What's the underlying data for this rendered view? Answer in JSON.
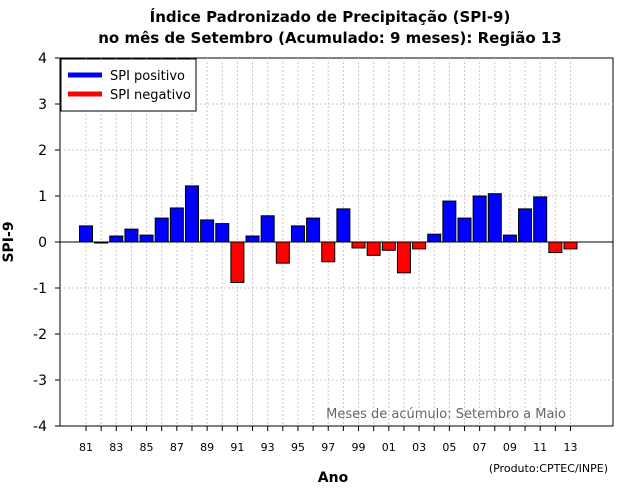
{
  "chart_data": {
    "type": "bar",
    "title_line1": "Índice Padronizado de Precipitação (SPI-9)",
    "title_line2": "no mês de Setembro (Acumulado: 9 meses): Região 13",
    "xlabel": "Ano",
    "ylabel": "SPI-9",
    "ylim": [
      -4,
      4
    ],
    "yticks": [
      "4",
      "3",
      "2",
      "1",
      "0",
      "-1",
      "-2",
      "-3",
      "-4"
    ],
    "ytick_values": [
      4,
      3,
      2,
      1,
      0,
      -1,
      -2,
      -3,
      -4
    ],
    "grid": true,
    "legend_position": "top-left",
    "legend": [
      {
        "label": "SPI positivo",
        "color": "#0000ff"
      },
      {
        "label": "SPI negativo",
        "color": "#ff0000"
      }
    ],
    "positive_color": "#0000ff",
    "negative_color": "#ff0000",
    "years": [
      1981,
      1982,
      1983,
      1984,
      1985,
      1986,
      1987,
      1988,
      1989,
      1990,
      1991,
      1992,
      1993,
      1994,
      1995,
      1996,
      1997,
      1998,
      1999,
      2000,
      2001,
      2002,
      2003,
      2004,
      2005,
      2006,
      2007,
      2008,
      2009,
      2010,
      2011,
      2012,
      2013
    ],
    "xtick_labels": [
      "81",
      "83",
      "85",
      "87",
      "89",
      "91",
      "93",
      "95",
      "97",
      "99",
      "01",
      "03",
      "05",
      "07",
      "09",
      "11",
      "13"
    ],
    "values": [
      0.35,
      -0.02,
      0.13,
      0.28,
      0.15,
      0.52,
      0.74,
      1.22,
      0.48,
      0.4,
      -0.88,
      0.13,
      0.57,
      -0.46,
      0.35,
      0.52,
      -0.43,
      0.72,
      -0.13,
      -0.29,
      -0.18,
      -0.67,
      -0.15,
      0.17,
      0.89,
      0.52,
      1.0,
      1.05,
      0.15,
      0.72,
      0.98,
      -0.23,
      -0.15
    ],
    "annotation": "Meses de acúmulo: Setembro a Maio",
    "credit": "(Produto:CPTEC/INPE)"
  }
}
